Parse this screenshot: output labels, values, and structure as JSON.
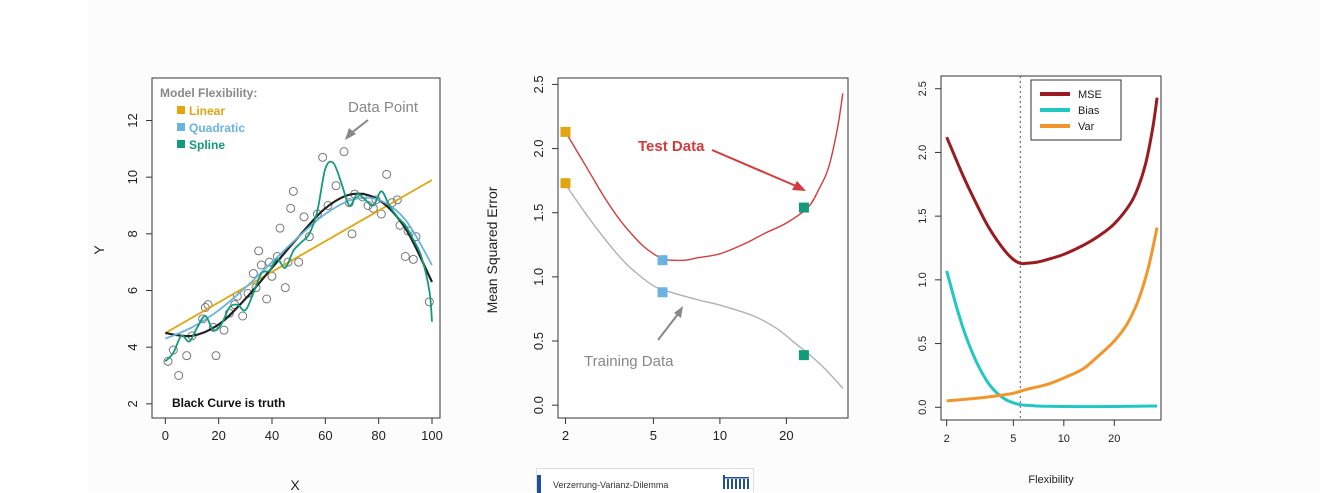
{
  "caption": {
    "text": "Verzerrung-Varianz-Dilemma",
    "logo": "bar-logo-icon"
  },
  "chart_data": [
    {
      "type": "scatter",
      "id": "fit",
      "xlabel": "X",
      "ylabel": "Y",
      "xlim": [
        -5,
        103
      ],
      "ylim": [
        1.5,
        13.5
      ],
      "xticks": [
        0,
        20,
        40,
        60,
        80,
        100
      ],
      "yticks": [
        2,
        4,
        6,
        8,
        10,
        12
      ],
      "legend_title": "Model Flexibility:",
      "legend": [
        {
          "label": "Linear",
          "color": "#e0a50f"
        },
        {
          "label": "Quadratic",
          "color": "#6ab3e0"
        },
        {
          "label": "Spline",
          "color": "#119b7a"
        }
      ],
      "annotation": "Data Point",
      "note": "Black Curve is truth",
      "points": [
        [
          1,
          3.5
        ],
        [
          3,
          3.9
        ],
        [
          5,
          3.0
        ],
        [
          8,
          3.7
        ],
        [
          10,
          4.4
        ],
        [
          14,
          5.0
        ],
        [
          15,
          5.4
        ],
        [
          16,
          5.5
        ],
        [
          18,
          4.7
        ],
        [
          19,
          3.7
        ],
        [
          22,
          4.6
        ],
        [
          24,
          5.2
        ],
        [
          26,
          5.5
        ],
        [
          27,
          5.8
        ],
        [
          29,
          5.1
        ],
        [
          31,
          5.9
        ],
        [
          33,
          6.6
        ],
        [
          34,
          6.1
        ],
        [
          35,
          7.4
        ],
        [
          36,
          6.9
        ],
        [
          38,
          5.7
        ],
        [
          39,
          7.0
        ],
        [
          40,
          6.5
        ],
        [
          42,
          7.2
        ],
        [
          43,
          8.2
        ],
        [
          45,
          6.1
        ],
        [
          46,
          7.0
        ],
        [
          47,
          8.9
        ],
        [
          48,
          9.5
        ],
        [
          50,
          7.0
        ],
        [
          52,
          8.6
        ],
        [
          54,
          7.9
        ],
        [
          57,
          8.7
        ],
        [
          59,
          10.7
        ],
        [
          61,
          9.0
        ],
        [
          64,
          9.7
        ],
        [
          67,
          10.9
        ],
        [
          69,
          9.1
        ],
        [
          70,
          8.0
        ],
        [
          71,
          9.4
        ],
        [
          74,
          9.3
        ],
        [
          76,
          9.0
        ],
        [
          78,
          8.9
        ],
        [
          79,
          9.2
        ],
        [
          81,
          8.7
        ],
        [
          83,
          10.1
        ],
        [
          85,
          9.1
        ],
        [
          87,
          9.2
        ],
        [
          88,
          8.3
        ],
        [
          90,
          7.2
        ],
        [
          91,
          8.1
        ],
        [
          93,
          7.1
        ],
        [
          94,
          7.9
        ],
        [
          99,
          5.6
        ]
      ],
      "series": [
        {
          "name": "Linear",
          "color": "#e0a50f",
          "x": [
            0,
            100
          ],
          "y": [
            4.5,
            9.9
          ]
        },
        {
          "name": "Truth",
          "color": "#222222",
          "x": [
            0,
            10,
            20,
            30,
            40,
            50,
            60,
            70,
            80,
            90,
            100
          ],
          "y": [
            4.5,
            4.4,
            4.8,
            5.7,
            6.8,
            7.9,
            8.9,
            9.4,
            9.2,
            8.2,
            6.3
          ]
        },
        {
          "name": "Quadratic",
          "color": "#6ab3e0",
          "x": [
            0,
            10,
            20,
            30,
            40,
            50,
            60,
            70,
            80,
            90,
            100
          ],
          "y": [
            4.3,
            4.7,
            5.3,
            6.1,
            7.0,
            7.9,
            8.7,
            9.2,
            9.2,
            8.5,
            6.9
          ]
        },
        {
          "name": "Spline",
          "color": "#119b7a",
          "x": [
            0,
            3,
            6,
            9,
            12,
            15,
            18,
            21,
            24,
            27,
            30,
            33,
            36,
            39,
            42,
            45,
            48,
            51,
            54,
            57,
            60,
            63,
            66,
            69,
            72,
            75,
            78,
            81,
            84,
            87,
            90,
            93,
            96,
            99,
            100
          ],
          "y": [
            3.5,
            3.8,
            4.4,
            4.2,
            4.7,
            5.1,
            4.6,
            4.8,
            5.4,
            5.5,
            5.3,
            5.9,
            6.6,
            6.7,
            7.1,
            6.8,
            7.4,
            7.7,
            8.0,
            8.8,
            10.3,
            10.5,
            9.8,
            9.0,
            9.4,
            9.2,
            9.0,
            9.5,
            9.0,
            8.6,
            8.3,
            7.8,
            7.2,
            6.0,
            4.9
          ]
        }
      ]
    },
    {
      "type": "line",
      "id": "error",
      "xlabel": "",
      "ylabel": "Mean Squared Error",
      "xscale": "log",
      "xlim": [
        1.85,
        38
      ],
      "ylim": [
        -0.1,
        2.55
      ],
      "xticks": [
        2,
        5,
        10,
        20
      ],
      "yticks": [
        0.0,
        0.5,
        1.0,
        1.5,
        2.0,
        2.5
      ],
      "annotations": [
        "Test Data",
        "Training Data"
      ],
      "series": [
        {
          "name": "Test Data",
          "color": "#d43b3b",
          "x": [
            2,
            2.5,
            3,
            3.5,
            4,
            4.5,
            5,
            5.5,
            6,
            7,
            8,
            10,
            13,
            16,
            20,
            25,
            28,
            31,
            34,
            36
          ],
          "y": [
            2.13,
            1.85,
            1.62,
            1.45,
            1.33,
            1.24,
            1.18,
            1.14,
            1.13,
            1.13,
            1.15,
            1.18,
            1.26,
            1.34,
            1.42,
            1.54,
            1.68,
            1.85,
            2.15,
            2.43
          ]
        },
        {
          "name": "Training Data",
          "color": "#b0b0b0",
          "x": [
            2,
            2.5,
            3,
            3.5,
            4,
            5,
            6,
            8,
            10,
            14,
            18,
            22,
            26,
            30,
            34,
            36
          ],
          "y": [
            1.72,
            1.48,
            1.3,
            1.16,
            1.06,
            0.93,
            0.88,
            0.82,
            0.78,
            0.7,
            0.6,
            0.48,
            0.38,
            0.28,
            0.18,
            0.13
          ]
        }
      ],
      "markers": [
        {
          "x": 2,
          "y": 2.13,
          "color": "#e0a50f"
        },
        {
          "x": 2,
          "y": 1.73,
          "color": "#e0a50f"
        },
        {
          "x": 5.5,
          "y": 1.13,
          "color": "#6ab3e0"
        },
        {
          "x": 5.5,
          "y": 0.88,
          "color": "#6ab3e0"
        },
        {
          "x": 24,
          "y": 1.54,
          "color": "#119b7a"
        },
        {
          "x": 24,
          "y": 0.39,
          "color": "#119b7a"
        }
      ]
    },
    {
      "type": "line",
      "id": "decomp",
      "xlabel": "Flexibility",
      "ylabel": "",
      "xscale": "log",
      "xlim": [
        1.85,
        38
      ],
      "ylim": [
        -0.1,
        2.6
      ],
      "xticks": [
        2,
        5,
        10,
        20
      ],
      "yticks": [
        0.0,
        0.5,
        1.0,
        1.5,
        2.0,
        2.5
      ],
      "vline": 5.5,
      "legend": [
        {
          "label": "MSE",
          "color": "#9b1b20"
        },
        {
          "label": "Bias",
          "color": "#22c7c3"
        },
        {
          "label": "Var",
          "color": "#f2962c"
        }
      ],
      "series": [
        {
          "name": "MSE",
          "color": "#9b1b20",
          "x": [
            2,
            2.5,
            3,
            3.5,
            4,
            4.5,
            5,
            5.5,
            6,
            7,
            8,
            10,
            13,
            16,
            20,
            25,
            28,
            31,
            34,
            36
          ],
          "y": [
            2.12,
            1.82,
            1.6,
            1.43,
            1.31,
            1.22,
            1.16,
            1.13,
            1.13,
            1.14,
            1.16,
            1.2,
            1.27,
            1.34,
            1.44,
            1.6,
            1.74,
            1.93,
            2.2,
            2.43
          ]
        },
        {
          "name": "Bias",
          "color": "#22c7c3",
          "x": [
            2,
            2.3,
            2.6,
            3,
            3.5,
            4,
            4.5,
            5,
            5.5,
            6,
            7,
            8,
            10,
            14,
            20,
            36
          ],
          "y": [
            1.07,
            0.78,
            0.56,
            0.36,
            0.2,
            0.11,
            0.06,
            0.035,
            0.02,
            0.015,
            0.01,
            0.008,
            0.006,
            0.005,
            0.006,
            0.01
          ]
        },
        {
          "name": "Var",
          "color": "#f2962c",
          "x": [
            2,
            3,
            4,
            5,
            6,
            8,
            10,
            13,
            16,
            20,
            24,
            28,
            32,
            36
          ],
          "y": [
            0.05,
            0.07,
            0.09,
            0.11,
            0.14,
            0.18,
            0.23,
            0.3,
            0.4,
            0.52,
            0.66,
            0.85,
            1.1,
            1.41
          ]
        }
      ]
    }
  ]
}
